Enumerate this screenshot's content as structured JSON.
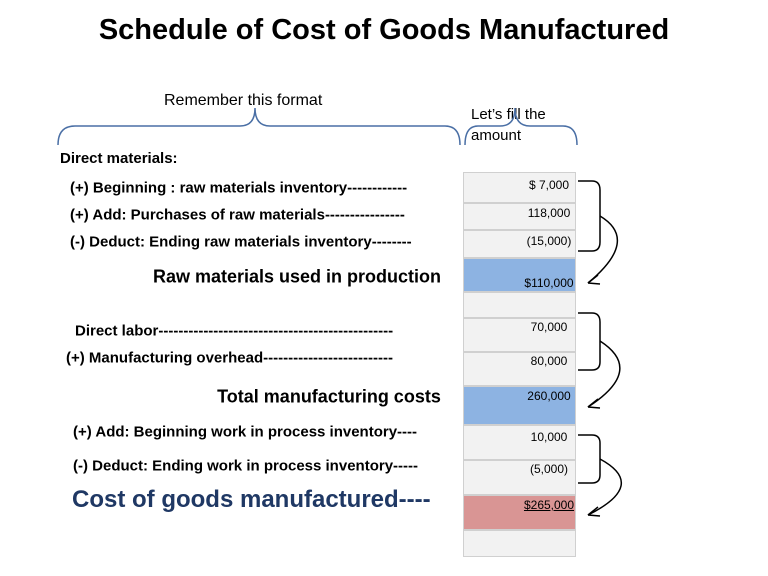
{
  "title": "Schedule of Cost of Goods Manufactured",
  "notes": {
    "format": "Remember this format",
    "fill": "Let’s fill the amount"
  },
  "section": "Direct materials:",
  "rows": [
    {
      "label": "(+) Beginning : raw materials inventory------------",
      "amount": "$  7,000"
    },
    {
      "label": "(+) Add: Purchases of raw materials----------------",
      "amount": "118,000"
    },
    {
      "label": "(-) Deduct: Ending raw materials inventory--------",
      "amount": "(15,000)"
    },
    {
      "label": "Raw materials used in production",
      "amount": "$110,000"
    },
    {
      "label": "Direct labor-----------------------------------------------",
      "amount": "70,000"
    },
    {
      "label": "(+) Manufacturing overhead--------------------------",
      "amount": "80,000"
    },
    {
      "label": "Total manufacturing costs",
      "amount": "260,000"
    },
    {
      "label": "(+) Add: Beginning work in process inventory----",
      "amount": "10,000"
    },
    {
      "label": "(-) Deduct: Ending work in process inventory-----",
      "amount": "(5,000)"
    },
    {
      "label": "Cost of goods manufactured----",
      "amount": "$265,000"
    }
  ]
}
